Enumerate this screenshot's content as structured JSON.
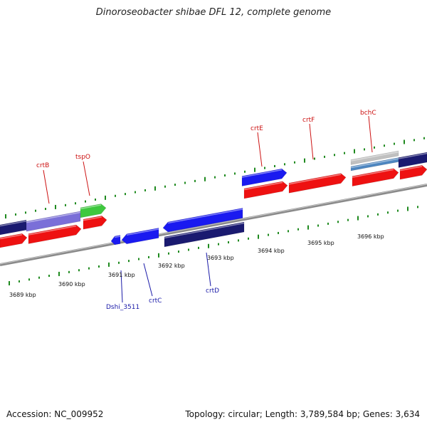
{
  "title": "Dinoroseobacter shibae DFL 12, complete genome",
  "footer": {
    "accession": "Accession: NC_009952",
    "summary": "Topology: circular; Length: 3,789,584 bp; Genes: 3,634"
  },
  "colors": {
    "backbone": "#8a8a8a",
    "tick": "#1f8a1f",
    "label_forward": "#cc1111",
    "label_reverse": "#1a1aa8",
    "gene_red": "#ee1111",
    "gene_blue": "#1a1af0",
    "gene_navy": "#1a1a70",
    "gene_purple": "#7a6fd8",
    "gene_green": "#3ec83e",
    "gene_gray": "#c0c0c0",
    "gene_steelblue": "#4d86c0"
  },
  "scale_labels": [
    "3689 kbp",
    "3690 kbp",
    "3691 kbp",
    "3692 kbp",
    "3693 kbp",
    "3694 kbp",
    "3695 kbp",
    "3696 kbp"
  ],
  "gene_labels_top": [
    "crtB",
    "tspO",
    "crtE",
    "crtF",
    "bchC"
  ],
  "gene_labels_bottom": [
    "Dshi_3511",
    "crtC",
    "crtD"
  ]
}
